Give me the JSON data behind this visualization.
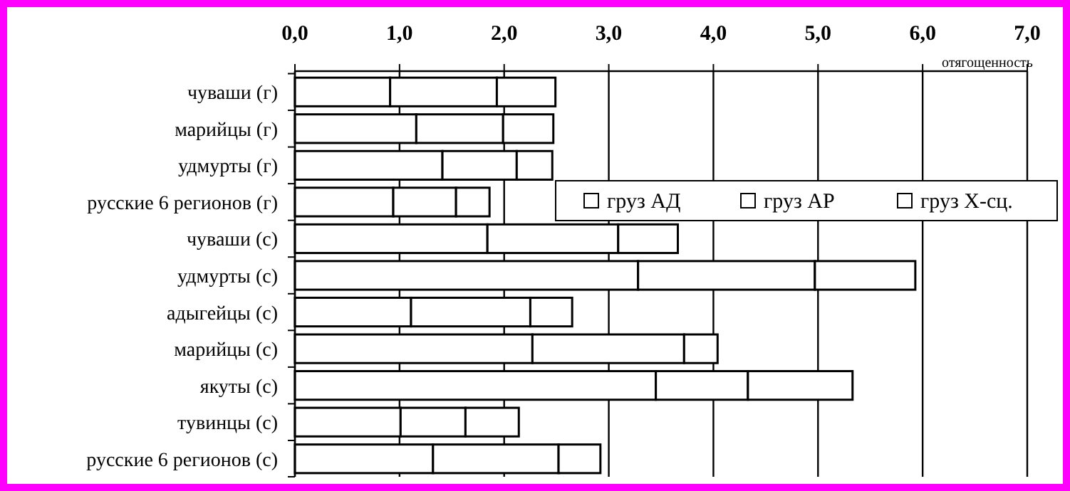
{
  "chart_data": {
    "type": "bar",
    "orientation": "horizontal",
    "stacked": true,
    "xlabel": "отягощенность",
    "categories": [
      "чуваши (г)",
      "марийцы (г)",
      "удмурты (г)",
      "русские 6 регионов (г)",
      "чуваши (с)",
      "удмурты (с)",
      "адыгейцы (с)",
      "марийцы (с)",
      "якуты (с)",
      "тувинцы (с)",
      "русские 6 регионов (с)"
    ],
    "series": [
      {
        "name": "груз АД",
        "color": "#ffffff",
        "values": [
          0.91,
          1.16,
          1.41,
          0.94,
          1.84,
          3.28,
          1.11,
          2.27,
          3.45,
          1.01,
          1.32
        ]
      },
      {
        "name": "груз АР",
        "color": "#ffffff",
        "values": [
          1.02,
          0.83,
          0.71,
          0.6,
          1.25,
          1.69,
          1.14,
          1.45,
          0.88,
          0.62,
          1.2
        ]
      },
      {
        "name": "груз Х-сц.",
        "color": "#ffffff",
        "values": [
          0.56,
          0.48,
          0.34,
          0.32,
          0.57,
          0.96,
          0.4,
          0.32,
          1.0,
          0.51,
          0.4
        ]
      }
    ],
    "xlim": [
      0,
      7
    ],
    "xticks": [
      {
        "value": 0,
        "label": "0,0"
      },
      {
        "value": 1,
        "label": "1,0"
      },
      {
        "value": 2,
        "label": "2,0"
      },
      {
        "value": 3,
        "label": "3,0"
      },
      {
        "value": 4,
        "label": "4,0"
      },
      {
        "value": 5,
        "label": "5,0"
      },
      {
        "value": 6,
        "label": "6,0"
      },
      {
        "value": 7,
        "label": "7,0"
      }
    ],
    "grid": "x",
    "legend": "right"
  }
}
